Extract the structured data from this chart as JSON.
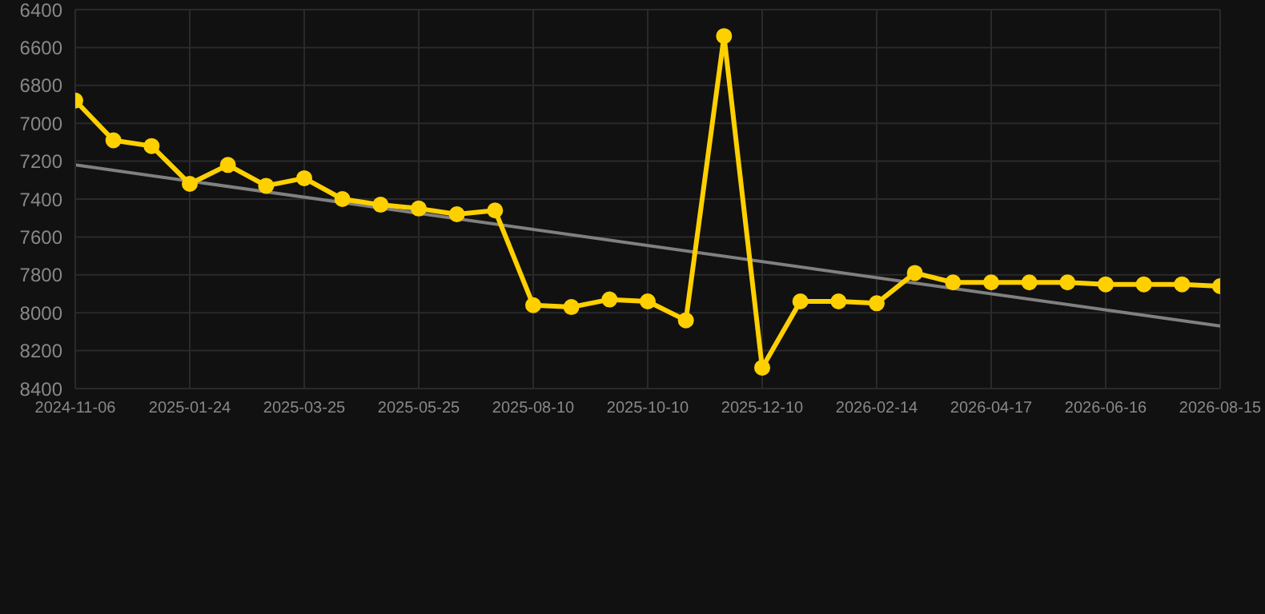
{
  "chart_data": {
    "type": "line",
    "categories": [
      "2024-11-06",
      null,
      null,
      "2025-01-24",
      null,
      null,
      "2025-03-25",
      null,
      null,
      "2025-05-25",
      null,
      null,
      "2025-08-10",
      null,
      null,
      "2025-10-10",
      null,
      null,
      "2025-12-10",
      null,
      null,
      "2026-02-14",
      null,
      null,
      "2026-04-17",
      null,
      null,
      "2026-06-16",
      null,
      null,
      "2026-08-15"
    ],
    "series": [
      {
        "color": "#ffd000",
        "marker": "circle",
        "values": [
          6880,
          7090,
          7120,
          7320,
          7220,
          7330,
          7290,
          7400,
          7430,
          7450,
          7480,
          7460,
          7960,
          7970,
          7930,
          7940,
          8040,
          6540,
          8290,
          7940,
          7940,
          7950,
          7790,
          7840,
          7840,
          7840,
          7840,
          7850,
          7850,
          7850,
          7860
        ]
      },
      {
        "type": "line",
        "color": "#808080",
        "marker": "none",
        "values": [
          7220,
          null,
          null,
          null,
          null,
          null,
          null,
          null,
          null,
          null,
          null,
          null,
          null,
          null,
          null,
          null,
          null,
          null,
          null,
          null,
          null,
          null,
          null,
          null,
          null,
          null,
          null,
          null,
          null,
          null,
          8070
        ]
      }
    ],
    "ylim": [
      8400,
      6400
    ],
    "yticks": [
      6400,
      6600,
      6800,
      7000,
      7200,
      7400,
      7600,
      7800,
      8000,
      8200,
      8400
    ],
    "grid": true,
    "legend": false
  }
}
